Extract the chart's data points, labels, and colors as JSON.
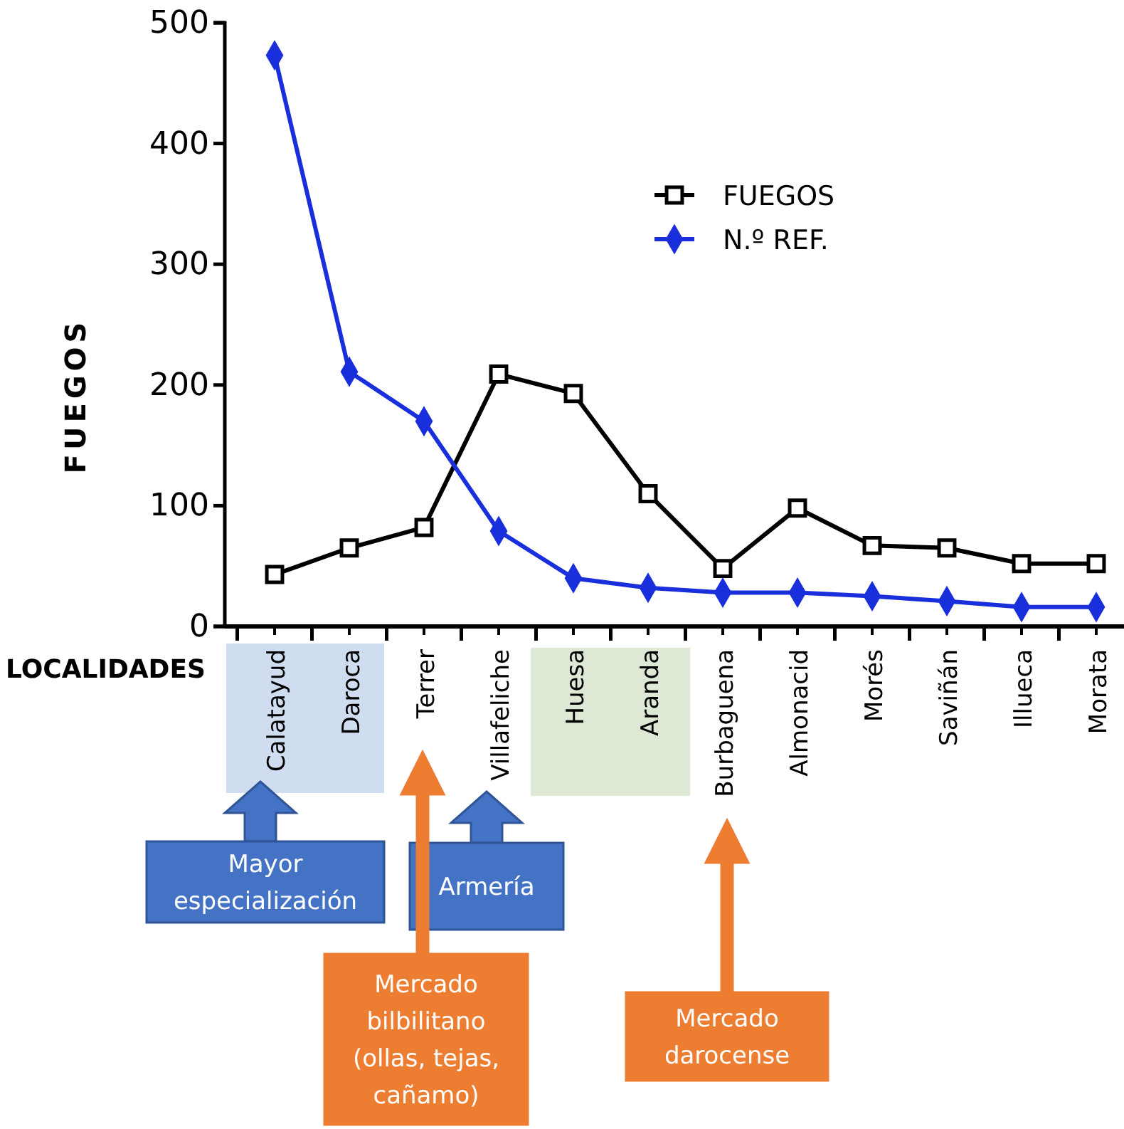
{
  "chart_data": {
    "type": "line",
    "xlabel": "LOCALIDADES",
    "ylabel": "FUEGOS",
    "categories": [
      "Calatayud",
      "Daroca",
      "Terrer",
      "Villafeliche",
      "Huesa",
      "Aranda",
      "Burbaguena",
      "Almonacid",
      "Morés",
      "Saviñán",
      "Illueca",
      "Morata"
    ],
    "series": [
      {
        "name": "FUEGOS",
        "color": "#000000",
        "marker": "square",
        "values": [
          43,
          65,
          82,
          209,
          193,
          110,
          48,
          98,
          67,
          65,
          52,
          52
        ]
      },
      {
        "name": "N.º REF.",
        "color": "#1a2fdc",
        "marker": "diamond",
        "values": [
          473,
          211,
          170,
          79,
          40,
          32,
          28,
          28,
          25,
          21,
          16,
          16
        ]
      }
    ],
    "ylim": [
      0,
      500
    ],
    "yticks": [
      0,
      100,
      200,
      300,
      400,
      500
    ],
    "grid": false,
    "legend": "top right",
    "line_style": "solid",
    "annotations": [
      "Mayor especialización",
      "Armería",
      "Mercado bilbilitano (ollas, tejas, cañamo)",
      "Mercado darocense"
    ]
  }
}
